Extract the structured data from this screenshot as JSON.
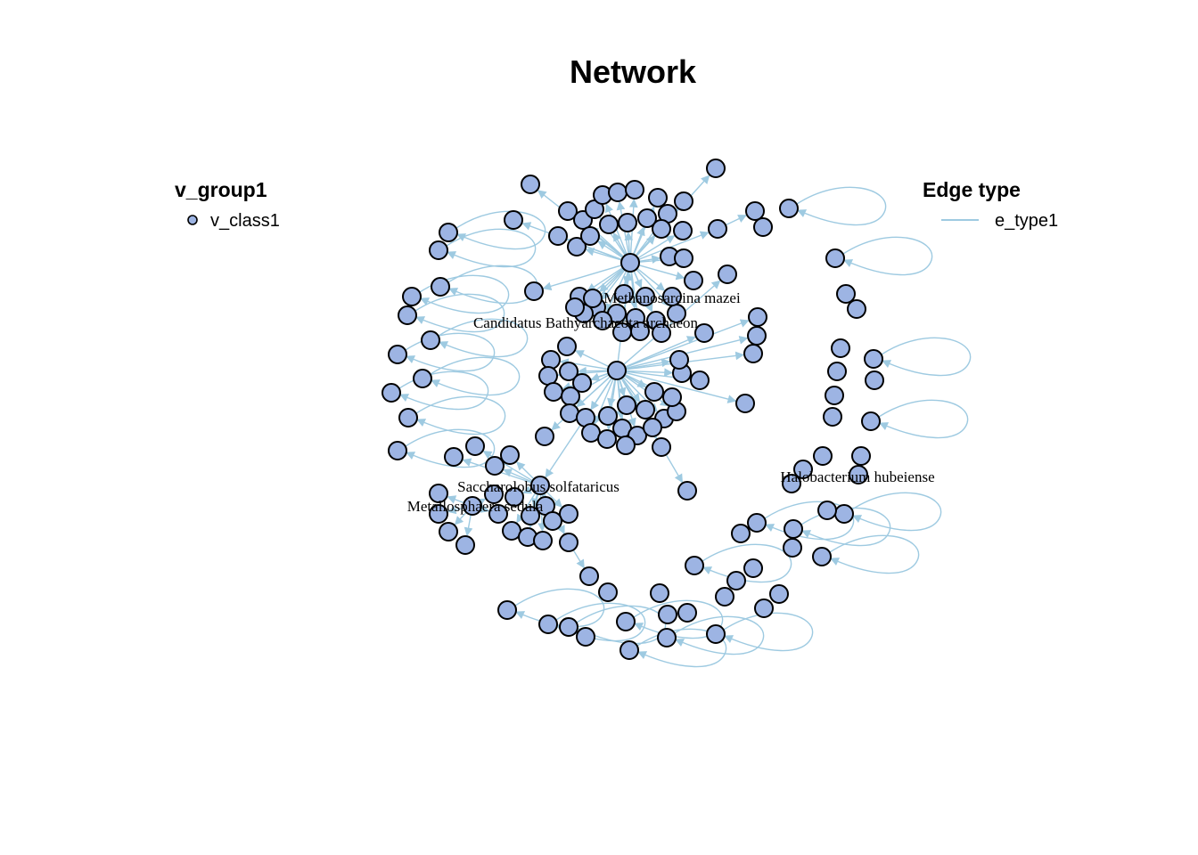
{
  "title": "Network",
  "legend_nodes": {
    "title": "v_group1",
    "items": [
      {
        "label": "v_class1",
        "color": "#9db4e3"
      }
    ]
  },
  "legend_edges": {
    "title": "Edge type",
    "items": [
      {
        "label": "e_type1",
        "color": "#9ecae1"
      }
    ]
  },
  "labels": [
    {
      "id": "mazei",
      "text": "Methanosarcina mazei"
    },
    {
      "id": "bathy",
      "text": "Candidatus Bathyarchaeota archaeon"
    },
    {
      "id": "solfa",
      "text": "Saccharolobus solfataricus"
    },
    {
      "id": "sedula",
      "text": "Metallosphaera sedula"
    },
    {
      "id": "hubei",
      "text": "Halobacterium hubeiense"
    }
  ],
  "colors": {
    "node_fill": "#9db4e3",
    "node_stroke": "#000000",
    "edge": "#9ecae1"
  }
}
